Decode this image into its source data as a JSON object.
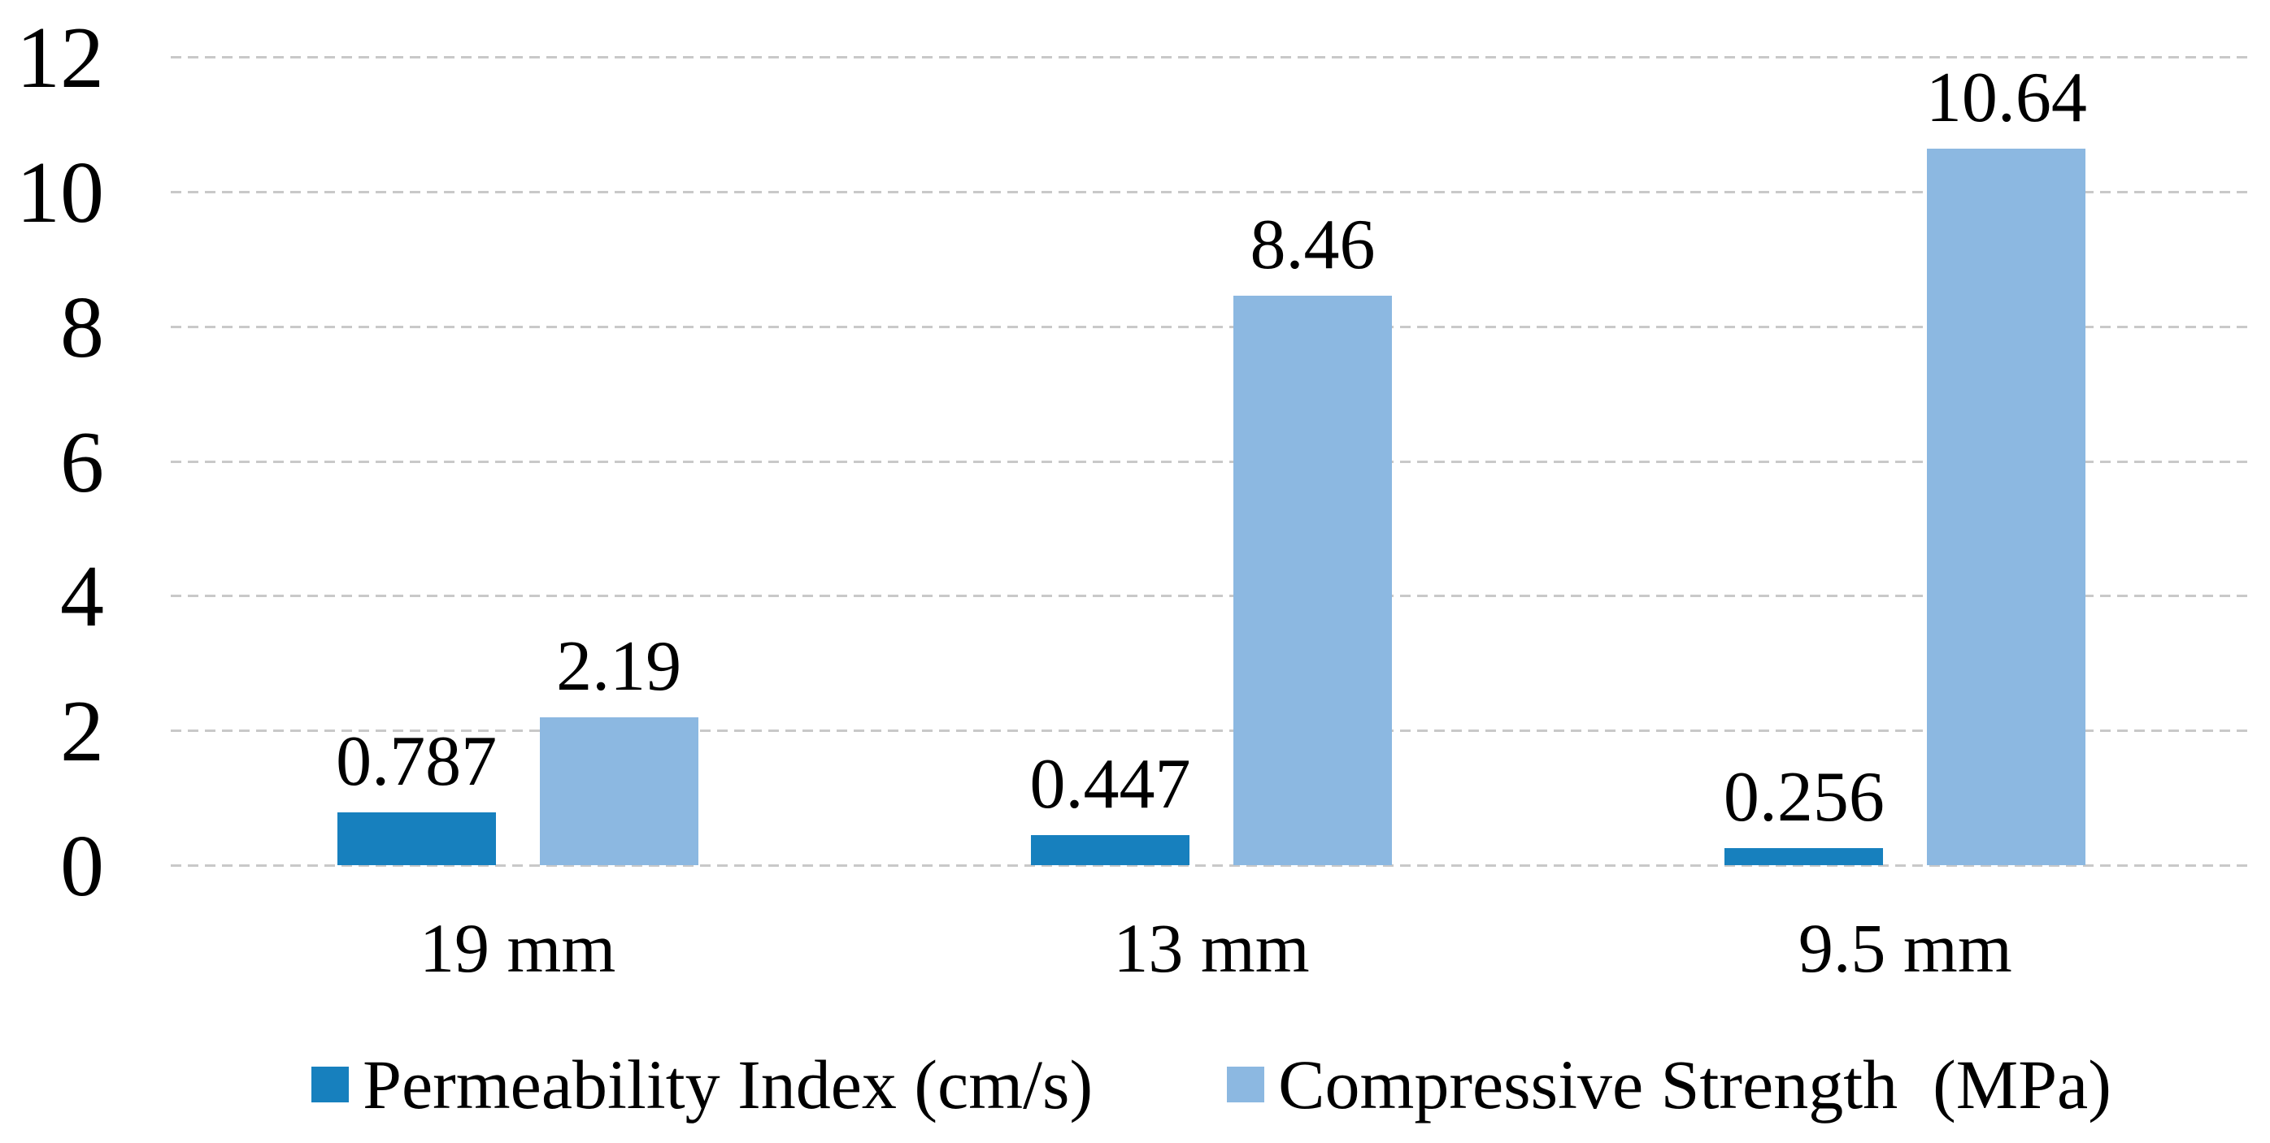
{
  "chart_data": {
    "type": "bar",
    "title": "",
    "xlabel": "",
    "ylabel": "",
    "categories": [
      "19 mm",
      "13 mm",
      "9.5 mm"
    ],
    "series": [
      {
        "name": "Permeability Index (cm/s)",
        "color": "#1780be",
        "values": [
          0.787,
          0.447,
          0.256
        ],
        "value_labels": [
          "0.787",
          "0.447",
          "0.256"
        ]
      },
      {
        "name": "Compressive Strength  (MPa)",
        "color": "#8cb8e1",
        "values": [
          2.19,
          8.46,
          10.64
        ],
        "value_labels": [
          "2.19",
          "8.46",
          "10.64"
        ]
      }
    ],
    "ylim": [
      0,
      12
    ],
    "yticks": [
      "0",
      "2",
      "4",
      "6",
      "8",
      "10",
      "12"
    ],
    "grid": true,
    "legend_position": "bottom",
    "colors": {
      "gridline": "#c9c9c9",
      "text": "#000000",
      "background": "#ffffff"
    }
  }
}
